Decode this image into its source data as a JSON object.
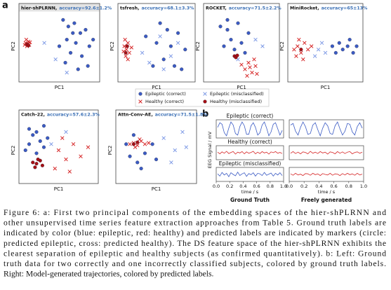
{
  "panel_a": {
    "label": "a",
    "x_label": "PC1",
    "y_label": "PC2",
    "legend": [
      {
        "key": "epileptic_correct",
        "label": "Epileptic (correct)",
        "color": "#3b5bc4",
        "marker": "circle"
      },
      {
        "key": "healthy_correct",
        "label": "Healthy (correct)",
        "color": "#d62728",
        "marker": "cross"
      },
      {
        "key": "epileptic_misclassified",
        "label": "Epileptic (misclassified)",
        "color": "#7f9be6",
        "marker": "cross"
      },
      {
        "key": "healthy_misclassified",
        "label": "Healthy (misclassified)",
        "color": "#a50f15",
        "marker": "circle"
      }
    ],
    "plots": [
      {
        "method": "hier-shPLRNN,",
        "accuracy": "accuracy=92.6±1.2%",
        "points": {
          "epileptic_correct": [
            [
              0.55,
              0.9
            ],
            [
              0.62,
              0.8
            ],
            [
              0.7,
              0.85
            ],
            [
              0.78,
              0.7
            ],
            [
              0.85,
              0.75
            ],
            [
              0.6,
              0.6
            ],
            [
              0.72,
              0.55
            ],
            [
              0.9,
              0.5
            ],
            [
              0.65,
              0.4
            ],
            [
              0.8,
              0.35
            ],
            [
              0.58,
              0.25
            ],
            [
              0.75,
              0.15
            ],
            [
              0.88,
              0.2
            ],
            [
              0.68,
              0.7
            ],
            [
              0.95,
              0.6
            ],
            [
              0.5,
              0.5
            ]
          ],
          "healthy_correct": [
            [
              0.05,
              0.55
            ],
            [
              0.07,
              0.5
            ],
            [
              0.09,
              0.57
            ],
            [
              0.06,
              0.6
            ],
            [
              0.1,
              0.52
            ],
            [
              0.08,
              0.54
            ],
            [
              0.04,
              0.52
            ],
            [
              0.11,
              0.56
            ]
          ],
          "epileptic_misclassified": [
            [
              0.3,
              0.55
            ],
            [
              0.6,
              0.1
            ],
            [
              0.45,
              0.3
            ]
          ],
          "healthy_misclassified": [
            [
              0.07,
              0.53
            ],
            [
              0.09,
              0.51
            ]
          ]
        }
      },
      {
        "method": "tsfresh,",
        "accuracy": "accuracy=68.1±3.3%",
        "points": {
          "epileptic_correct": [
            [
              0.55,
              0.85
            ],
            [
              0.65,
              0.75
            ],
            [
              0.8,
              0.7
            ],
            [
              0.5,
              0.55
            ],
            [
              0.7,
              0.5
            ],
            [
              0.9,
              0.45
            ],
            [
              0.6,
              0.3
            ],
            [
              0.75,
              0.2
            ],
            [
              0.45,
              0.2
            ],
            [
              0.85,
              0.15
            ],
            [
              0.35,
              0.65
            ]
          ],
          "healthy_correct": [
            [
              0.05,
              0.5
            ],
            [
              0.08,
              0.45
            ],
            [
              0.1,
              0.55
            ],
            [
              0.07,
              0.35
            ],
            [
              0.12,
              0.4
            ],
            [
              0.06,
              0.6
            ],
            [
              0.1,
              0.3
            ],
            [
              0.15,
              0.48
            ],
            [
              0.04,
              0.42
            ]
          ],
          "epileptic_misclassified": [
            [
              0.3,
              0.4
            ],
            [
              0.55,
              0.65
            ],
            [
              0.7,
              0.35
            ],
            [
              0.8,
              0.55
            ],
            [
              0.4,
              0.25
            ],
            [
              0.6,
              0.15
            ]
          ],
          "healthy_misclassified": [
            [
              0.09,
              0.5
            ],
            [
              0.07,
              0.4
            ]
          ]
        }
      },
      {
        "method": "ROCKET,",
        "accuracy": "accuracy=71.5±2.2%",
        "points": {
          "epileptic_correct": [
            [
              0.2,
              0.8
            ],
            [
              0.3,
              0.75
            ],
            [
              0.35,
              0.6
            ],
            [
              0.45,
              0.85
            ],
            [
              0.5,
              0.55
            ],
            [
              0.25,
              0.5
            ],
            [
              0.4,
              0.45
            ],
            [
              0.6,
              0.7
            ],
            [
              0.55,
              0.4
            ],
            [
              0.3,
              0.9
            ]
          ],
          "healthy_correct": [
            [
              0.55,
              0.15
            ],
            [
              0.6,
              0.25
            ],
            [
              0.65,
              0.1
            ],
            [
              0.7,
              0.2
            ],
            [
              0.58,
              0.05
            ],
            [
              0.68,
              0.3
            ],
            [
              0.62,
              0.18
            ],
            [
              0.72,
              0.08
            ],
            [
              0.5,
              0.22
            ]
          ],
          "epileptic_misclassified": [
            [
              0.7,
              0.6
            ],
            [
              0.8,
              0.5
            ],
            [
              0.45,
              0.3
            ]
          ],
          "healthy_misclassified": [
            [
              0.4,
              0.35
            ],
            [
              0.42,
              0.33
            ],
            [
              0.44,
              0.36
            ]
          ]
        }
      },
      {
        "method": "MiniRocket,",
        "accuracy": "accuracy=65±13%",
        "points": {
          "epileptic_correct": [
            [
              0.6,
              0.5
            ],
            [
              0.7,
              0.55
            ],
            [
              0.75,
              0.45
            ],
            [
              0.82,
              0.5
            ],
            [
              0.9,
              0.4
            ],
            [
              0.85,
              0.6
            ],
            [
              0.65,
              0.4
            ],
            [
              0.95,
              0.5
            ]
          ],
          "healthy_correct": [
            [
              0.05,
              0.45
            ],
            [
              0.1,
              0.5
            ],
            [
              0.15,
              0.4
            ],
            [
              0.2,
              0.55
            ],
            [
              0.08,
              0.35
            ],
            [
              0.25,
              0.45
            ],
            [
              0.12,
              0.6
            ],
            [
              0.3,
              0.5
            ],
            [
              0.18,
              0.3
            ]
          ],
          "epileptic_misclassified": [
            [
              0.4,
              0.45
            ],
            [
              0.45,
              0.55
            ],
            [
              0.5,
              0.4
            ],
            [
              0.35,
              0.35
            ]
          ],
          "healthy_misclassified": [
            [
              0.15,
              0.45
            ]
          ]
        }
      },
      {
        "method": "Catch-22,",
        "accuracy": "accuracy=57.6±2.3%",
        "points": {
          "epileptic_correct": [
            [
              0.1,
              0.85
            ],
            [
              0.15,
              0.75
            ],
            [
              0.2,
              0.8
            ],
            [
              0.1,
              0.6
            ],
            [
              0.25,
              0.65
            ],
            [
              0.3,
              0.55
            ],
            [
              0.05,
              0.5
            ],
            [
              0.2,
              0.45
            ],
            [
              0.35,
              0.7
            ],
            [
              0.3,
              0.9
            ]
          ],
          "healthy_correct": [
            [
              0.5,
              0.5
            ],
            [
              0.6,
              0.35
            ],
            [
              0.7,
              0.6
            ],
            [
              0.8,
              0.4
            ],
            [
              0.45,
              0.2
            ],
            [
              0.65,
              0.15
            ],
            [
              0.9,
              0.55
            ],
            [
              0.55,
              0.7
            ]
          ],
          "epileptic_misclassified": [
            [
              0.4,
              0.6
            ],
            [
              0.6,
              0.8
            ]
          ],
          "healthy_misclassified": [
            [
              0.15,
              0.3
            ],
            [
              0.2,
              0.28
            ],
            [
              0.25,
              0.33
            ],
            [
              0.18,
              0.22
            ],
            [
              0.22,
              0.35
            ],
            [
              0.28,
              0.25
            ]
          ]
        }
      },
      {
        "method": "Attn-Conv-AE,",
        "accuracy": "accuracy=71.5±1.8%",
        "points": {
          "epileptic_correct": [
            [
              0.1,
              0.6
            ],
            [
              0.15,
              0.4
            ],
            [
              0.25,
              0.3
            ],
            [
              0.35,
              0.45
            ],
            [
              0.45,
              0.6
            ],
            [
              0.2,
              0.75
            ],
            [
              0.5,
              0.35
            ],
            [
              0.3,
              0.2
            ]
          ],
          "healthy_correct": [
            [
              0.15,
              0.6
            ],
            [
              0.2,
              0.62
            ],
            [
              0.25,
              0.58
            ],
            [
              0.3,
              0.65
            ],
            [
              0.35,
              0.6
            ],
            [
              0.22,
              0.55
            ],
            [
              0.28,
              0.68
            ],
            [
              0.4,
              0.62
            ]
          ],
          "epileptic_misclassified": [
            [
              0.6,
              0.7
            ],
            [
              0.75,
              0.5
            ],
            [
              0.85,
              0.8
            ],
            [
              0.7,
              0.3
            ],
            [
              0.9,
              0.55
            ]
          ],
          "healthy_misclassified": [
            [
              0.2,
              0.6
            ],
            [
              0.25,
              0.63
            ]
          ]
        }
      }
    ]
  },
  "panel_b": {
    "label": "b",
    "y_label": "EEG Signal / mV",
    "x_label": "time / s",
    "xlim": [
      0,
      1
    ],
    "ylim": [
      -1,
      1
    ],
    "xticks": [
      {
        "value": 0,
        "label": "0.0"
      },
      0.2,
      0.4,
      0.6,
      0.8,
      {
        "value": 1,
        "label": "1.0"
      }
    ],
    "columns": [
      "Ground Truth",
      "Freely generated"
    ],
    "rows": [
      {
        "title": "Epileptic (correct)",
        "traces": [
          {
            "color": "#3b5bc4",
            "values": [
              0.2,
              0.8,
              0.6,
              -0.5,
              -0.9,
              0.1,
              0.9,
              0.5,
              -0.6,
              -0.8,
              0.3,
              0.9,
              0.4,
              -0.7,
              -0.7,
              0.4,
              0.8,
              0.2,
              -0.8,
              -0.5,
              0.5,
              0.9,
              0.1,
              -0.9,
              -0.4,
              0.6,
              0.8,
              0,
              -0.8,
              -0.2
            ]
          },
          {
            "color": "#3b5bc4",
            "values": [
              0.5,
              0.7,
              -0.3,
              -0.8,
              0.2,
              0.9,
              0.3,
              -0.7,
              -0.6,
              0.5,
              0.8,
              -0.1,
              -0.9,
              0.1,
              0.8,
              0.4,
              -0.6,
              -0.7,
              0.4,
              0.9,
              0,
              -0.8,
              -0.3,
              0.7,
              0.6,
              -0.4,
              -0.8,
              0.3,
              0.8,
              0.1
            ]
          }
        ]
      },
      {
        "title": "Healthy (correct)",
        "traces": [
          {
            "color": "#d62728",
            "values": [
              0.1,
              -0.2,
              0.15,
              -0.1,
              0.25,
              -0.15,
              0.05,
              0.2,
              -0.25,
              0.1,
              -0.05,
              0.2,
              -0.2,
              0.15,
              -0.1,
              0.05,
              0.25,
              -0.2,
              0.1,
              -0.15,
              0.2,
              -0.05,
              0.1,
              -0.25,
              0.15,
              0,
              0.2,
              -0.1,
              0.05,
              -0.15
            ]
          },
          {
            "color": "#d62728",
            "values": [
              -0.1,
              0.2,
              -0.15,
              0.1,
              -0.2,
              0.15,
              0.05,
              -0.2,
              0.25,
              -0.1,
              0.1,
              -0.15,
              0.2,
              -0.05,
              0.1,
              -0.25,
              0.15,
              0.05,
              -0.2,
              0.2,
              -0.1,
              0.15,
              -0.15,
              0.1,
              0.2,
              -0.2,
              0.05,
              0.15,
              -0.1,
              0.1
            ]
          }
        ]
      },
      {
        "title": "Epileptic (misclassified)",
        "traces": [
          {
            "color": "#3b5bc4",
            "values": [
              0.1,
              -0.3,
              0.35,
              -0.1,
              0.2,
              -0.4,
              0.3,
              0,
              -0.25,
              0.4,
              -0.2,
              0.1,
              0.3,
              -0.35,
              0.15,
              -0.05,
              0.3,
              -0.3,
              0.2,
              0.1,
              -0.2,
              0.35,
              -0.15,
              0.05,
              0.25,
              -0.3,
              0.2,
              -0.1,
              0.3,
              -0.2
            ]
          },
          {
            "color": "#d62728",
            "values": [
              0.1,
              -0.15,
              0.2,
              -0.1,
              0.05,
              -0.2,
              0.15,
              0.1,
              -0.15,
              0.2,
              -0.05,
              0.1,
              -0.2,
              0.15,
              0,
              -0.1,
              0.2,
              -0.15,
              0.1,
              0.05,
              -0.2,
              0.15,
              -0.1,
              0.2,
              -0.05,
              0.1,
              -0.15,
              0.2,
              -0.1,
              0.05
            ]
          }
        ]
      }
    ]
  },
  "caption": {
    "lines": [
      "Figure 6: a: First two principal components of the embedding spaces of the hier-shPLRNN and",
      "other unsupervised time series feature extraction approaches from Table 5. Ground truth labels are",
      "indicated by color (blue: epileptic, red: healthy) and predicted labels are indicated by markers (circle:",
      "predicted epileptic, cross: predicted healthy). The DS feature space of the hier-shPLRNN exhibits the",
      "clearest separation of epileptic and healthy subjects (as confirmed quantitatively). b: Left: Ground",
      "truth data for two correctly and one incorrectly classified subjects, colored by ground truth labels.",
      "Right: Model-generated trajectories, colored by predicted labels."
    ]
  }
}
